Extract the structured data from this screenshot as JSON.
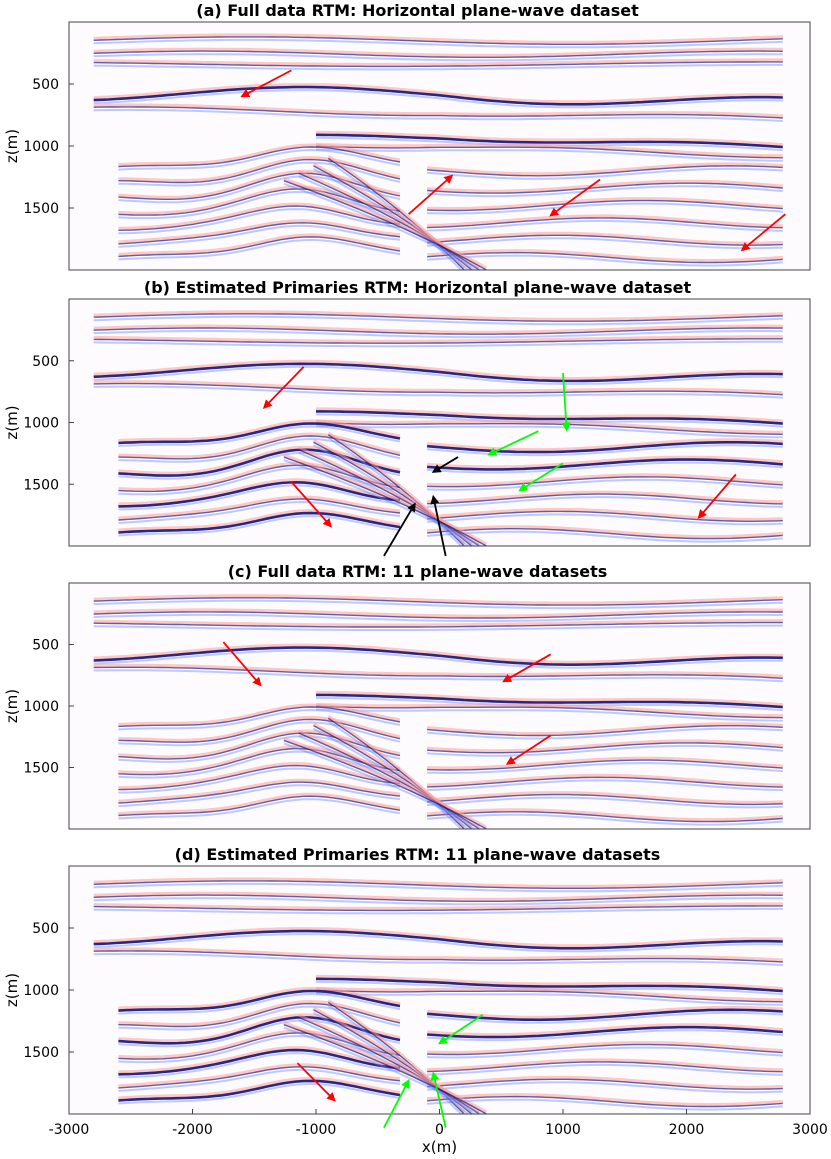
{
  "chart_data": [
    {
      "type": "heatmap",
      "title": "(a) Full data RTM: Horizontal plane-wave dataset",
      "ylabel": "z(m)",
      "xlabel": "",
      "xlim": [
        -3000,
        3000
      ],
      "ylim": [
        0,
        2000
      ],
      "yticks": [
        500,
        1000,
        1500
      ],
      "xticks": [],
      "arrows": [
        {
          "color": "#ff0000",
          "from": [
            -1200,
            390
          ],
          "to": [
            -1600,
            600
          ]
        },
        {
          "color": "#ff0000",
          "from": [
            -250,
            1550
          ],
          "to": [
            100,
            1240
          ]
        },
        {
          "color": "#ff0000",
          "from": [
            1300,
            1270
          ],
          "to": [
            900,
            1560
          ]
        },
        {
          "color": "#ff0000",
          "from": [
            2800,
            1550
          ],
          "to": [
            2450,
            1840
          ]
        }
      ]
    },
    {
      "type": "heatmap",
      "title": "(b) Estimated Primaries RTM: Horizontal plane-wave dataset",
      "ylabel": "z(m)",
      "xlabel": "",
      "xlim": [
        -3000,
        3000
      ],
      "ylim": [
        0,
        2000
      ],
      "yticks": [
        500,
        1000,
        1500
      ],
      "xticks": [],
      "arrows": [
        {
          "color": "#ff0000",
          "from": [
            -1100,
            550
          ],
          "to": [
            -1420,
            880
          ]
        },
        {
          "color": "#ff0000",
          "from": [
            -1200,
            1480
          ],
          "to": [
            -880,
            1840
          ]
        },
        {
          "color": "#ff0000",
          "from": [
            2400,
            1420
          ],
          "to": [
            2100,
            1770
          ]
        },
        {
          "color": "#00ff00",
          "from": [
            1000,
            600
          ],
          "to": [
            1030,
            1060
          ]
        },
        {
          "color": "#00ff00",
          "from": [
            800,
            1070
          ],
          "to": [
            400,
            1260
          ]
        },
        {
          "color": "#00ff00",
          "from": [
            1000,
            1330
          ],
          "to": [
            650,
            1550
          ]
        },
        {
          "color": "#000000",
          "from": [
            150,
            1280
          ],
          "to": [
            -50,
            1400
          ]
        },
        {
          "color": "#000000",
          "from": [
            -450,
            2080
          ],
          "to": [
            -200,
            1660
          ]
        },
        {
          "color": "#000000",
          "from": [
            50,
            2080
          ],
          "to": [
            -50,
            1600
          ]
        }
      ]
    },
    {
      "type": "heatmap",
      "title": "(c) Full data RTM: 11 plane-wave datasets",
      "ylabel": "z(m)",
      "xlabel": "",
      "xlim": [
        -3000,
        3000
      ],
      "ylim": [
        0,
        2000
      ],
      "yticks": [
        500,
        1000,
        1500
      ],
      "xticks": [],
      "arrows": [
        {
          "color": "#ff0000",
          "from": [
            -1750,
            480
          ],
          "to": [
            -1450,
            830
          ]
        },
        {
          "color": "#ff0000",
          "from": [
            900,
            580
          ],
          "to": [
            520,
            800
          ]
        },
        {
          "color": "#ff0000",
          "from": [
            900,
            1240
          ],
          "to": [
            550,
            1470
          ]
        }
      ]
    },
    {
      "type": "heatmap",
      "title": "(d) Estimated Primaries RTM: 11 plane-wave datasets",
      "ylabel": "z(m)",
      "xlabel": "x(m)",
      "xlim": [
        -3000,
        3000
      ],
      "ylim": [
        0,
        2000
      ],
      "yticks": [
        500,
        1000,
        1500
      ],
      "xticks": [
        -3000,
        -2000,
        -1000,
        0,
        1000,
        2000,
        3000
      ],
      "arrows": [
        {
          "color": "#ff0000",
          "from": [
            -1150,
            1590
          ],
          "to": [
            -850,
            1890
          ]
        },
        {
          "color": "#00ff00",
          "from": [
            350,
            1200
          ],
          "to": [
            0,
            1430
          ]
        },
        {
          "color": "#00ff00",
          "from": [
            -450,
            2110
          ],
          "to": [
            -250,
            1730
          ]
        },
        {
          "color": "#00ff00",
          "from": [
            50,
            2110
          ],
          "to": [
            -50,
            1670
          ]
        }
      ]
    }
  ]
}
